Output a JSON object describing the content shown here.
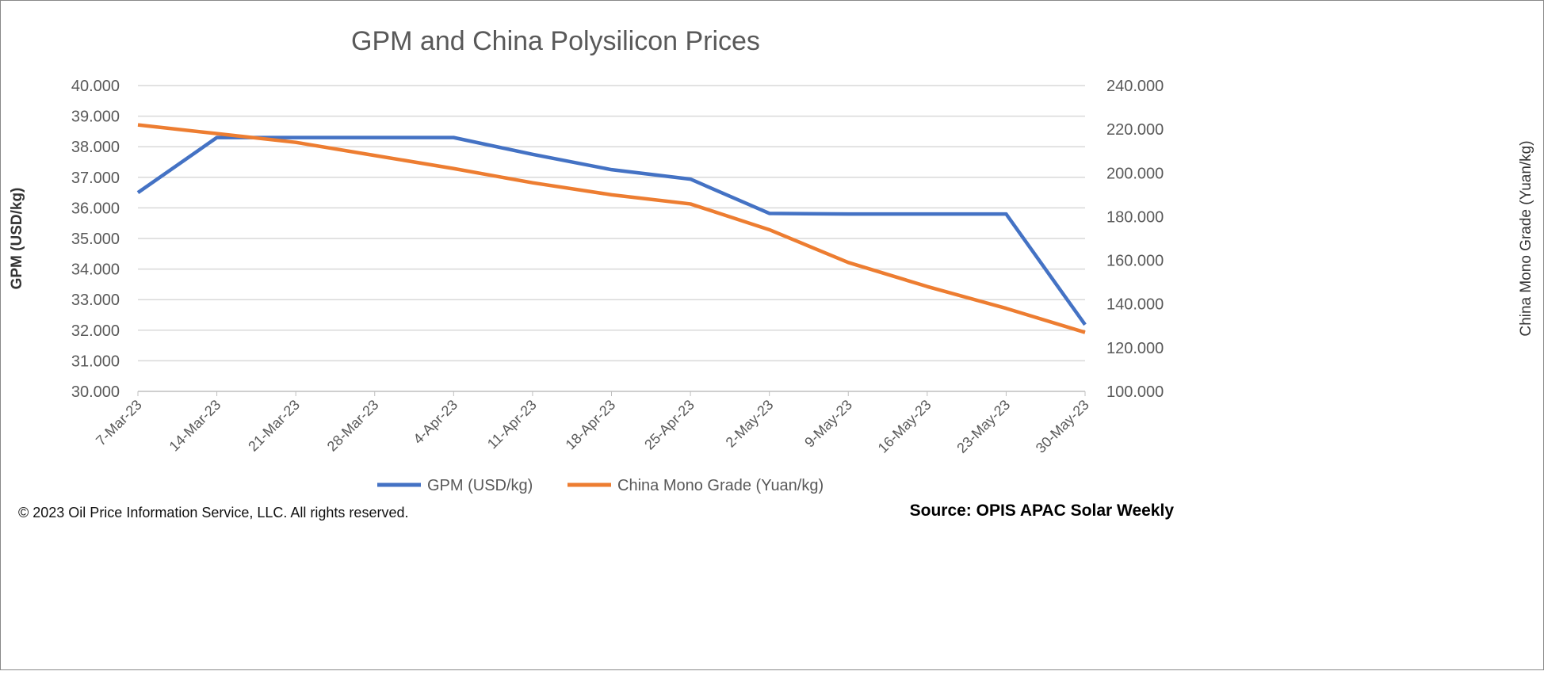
{
  "chart_data": {
    "type": "line",
    "title": "GPM and China Polysilicon Prices",
    "categories": [
      "7-Mar-23",
      "14-Mar-23",
      "21-Mar-23",
      "28-Mar-23",
      "4-Apr-23",
      "11-Apr-23",
      "18-Apr-23",
      "25-Apr-23",
      "2-May-23",
      "9-May-23",
      "16-May-23",
      "23-May-23",
      "30-May-23"
    ],
    "ylabel": "GPM (USD/kg)",
    "y2label": "China Mono Grade (Yuan/kg)",
    "ylim": [
      30,
      40
    ],
    "y2lim": [
      100,
      240
    ],
    "yticks": [
      "30.000",
      "31.000",
      "32.000",
      "33.000",
      "34.000",
      "35.000",
      "36.000",
      "37.000",
      "38.000",
      "39.000",
      "40.000"
    ],
    "y2ticks": [
      "100.000",
      "120.000",
      "140.000",
      "160.000",
      "180.000",
      "200.000",
      "220.000",
      "240.000"
    ],
    "grid": true,
    "legend": "bottom",
    "series": [
      {
        "name": "GPM (USD/kg)",
        "axis": "left",
        "color": "#4472C4",
        "values": [
          36.5,
          38.3,
          38.3,
          38.3,
          38.3,
          37.75,
          37.25,
          36.94,
          35.82,
          35.8,
          35.8,
          35.8,
          32.18
        ]
      },
      {
        "name": "China Mono Grade (Yuan/kg)",
        "axis": "right",
        "color": "#ED7D31",
        "values": [
          222,
          218,
          214,
          208,
          202,
          195.5,
          190,
          185.8,
          174,
          159,
          148,
          138,
          127
        ]
      }
    ]
  },
  "footer": {
    "copyright": "© 2023 Oil Price Information Service, LLC. All rights reserved.",
    "source": "Source: OPIS APAC Solar Weekly"
  }
}
